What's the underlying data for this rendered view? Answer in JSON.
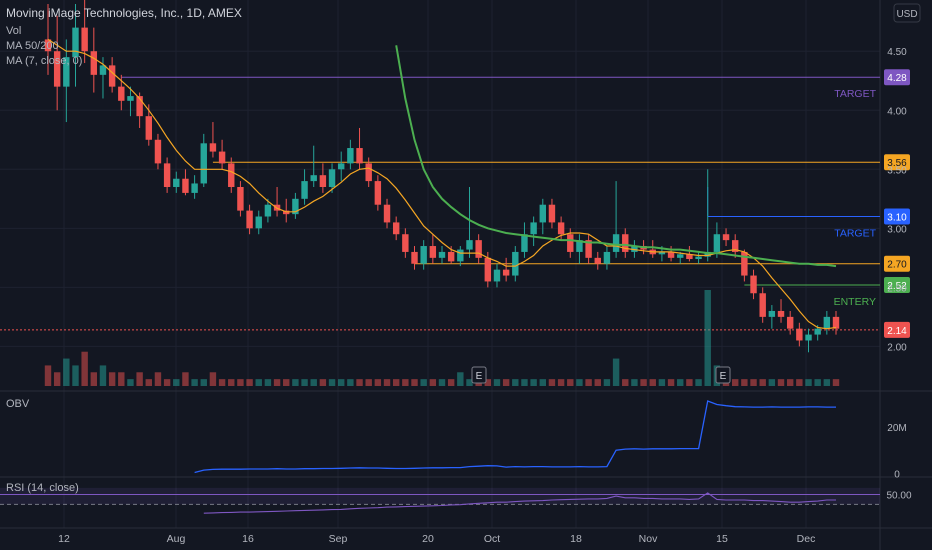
{
  "chart_data": {
    "type": "candlestick",
    "header": {
      "symbol_line": "Moving iMage Technologies, Inc., 1D, AMEX",
      "indicators": [
        "Vol",
        "MA 50/200",
        "MA (7, close, 0)"
      ]
    },
    "currency": "USD",
    "y_ticks": [
      {
        "value": 4.5,
        "label": "4.50"
      },
      {
        "value": 4.0,
        "label": "4.00"
      },
      {
        "value": 3.5,
        "label": "3.50"
      },
      {
        "value": 3.0,
        "label": "3.00"
      },
      {
        "value": 2.5,
        "label": "2.50"
      },
      {
        "value": 2.0,
        "label": "2.00"
      }
    ],
    "ylim": [
      1.8,
      4.9
    ],
    "x_ticks": [
      "12",
      "Aug",
      "16",
      "Sep",
      "20",
      "Oct",
      "18",
      "Nov",
      "15",
      "Dec"
    ],
    "levels": [
      {
        "value": 4.28,
        "label": "4.28",
        "name": "TARGET",
        "color": "#7e57c2"
      },
      {
        "value": 3.56,
        "label": "3.56",
        "name": "",
        "color": "#f5a623"
      },
      {
        "value": 3.1,
        "label": "3.10",
        "name": "TARGET",
        "color": "#2962ff"
      },
      {
        "value": 2.7,
        "label": "2.70",
        "name": "",
        "color": "#f5a623"
      },
      {
        "value": 2.52,
        "label": "2.52",
        "name": "ENTERY",
        "color": "#4caf50"
      },
      {
        "value": 2.14,
        "label": "2.14",
        "name": "",
        "color": "#ef5350"
      }
    ],
    "candles": [
      [
        4.6,
        4.9,
        4.3,
        4.5
      ],
      [
        4.5,
        4.8,
        4.0,
        4.2
      ],
      [
        4.2,
        4.6,
        3.9,
        4.45
      ],
      [
        4.45,
        4.9,
        4.2,
        4.7
      ],
      [
        4.7,
        4.95,
        4.4,
        4.5
      ],
      [
        4.5,
        4.7,
        4.15,
        4.3
      ],
      [
        4.3,
        4.45,
        4.1,
        4.38
      ],
      [
        4.38,
        4.45,
        4.15,
        4.2
      ],
      [
        4.2,
        4.3,
        4.0,
        4.08
      ],
      [
        4.08,
        4.2,
        3.95,
        4.12
      ],
      [
        4.12,
        4.15,
        3.85,
        3.95
      ],
      [
        3.95,
        4.05,
        3.7,
        3.75
      ],
      [
        3.75,
        3.8,
        3.5,
        3.55
      ],
      [
        3.55,
        3.6,
        3.3,
        3.35
      ],
      [
        3.35,
        3.48,
        3.3,
        3.42
      ],
      [
        3.42,
        3.5,
        3.28,
        3.3
      ],
      [
        3.3,
        3.45,
        3.25,
        3.38
      ],
      [
        3.38,
        3.8,
        3.35,
        3.72
      ],
      [
        3.72,
        3.9,
        3.6,
        3.65
      ],
      [
        3.65,
        3.75,
        3.5,
        3.55
      ],
      [
        3.55,
        3.6,
        3.3,
        3.35
      ],
      [
        3.35,
        3.4,
        3.1,
        3.15
      ],
      [
        3.15,
        3.2,
        2.95,
        3.0
      ],
      [
        3.0,
        3.15,
        2.95,
        3.1
      ],
      [
        3.1,
        3.25,
        3.05,
        3.2
      ],
      [
        3.2,
        3.35,
        3.1,
        3.15
      ],
      [
        3.15,
        3.25,
        3.05,
        3.12
      ],
      [
        3.12,
        3.3,
        3.08,
        3.25
      ],
      [
        3.25,
        3.5,
        3.2,
        3.4
      ],
      [
        3.4,
        3.7,
        3.35,
        3.45
      ],
      [
        3.45,
        3.55,
        3.3,
        3.35
      ],
      [
        3.35,
        3.55,
        3.3,
        3.5
      ],
      [
        3.5,
        3.65,
        3.4,
        3.55
      ],
      [
        3.55,
        3.75,
        3.5,
        3.68
      ],
      [
        3.68,
        3.85,
        3.5,
        3.55
      ],
      [
        3.55,
        3.6,
        3.35,
        3.4
      ],
      [
        3.4,
        3.45,
        3.15,
        3.2
      ],
      [
        3.2,
        3.25,
        3.0,
        3.05
      ],
      [
        3.05,
        3.1,
        2.9,
        2.95
      ],
      [
        2.95,
        3.0,
        2.75,
        2.8
      ],
      [
        2.8,
        2.85,
        2.65,
        2.7
      ],
      [
        2.7,
        2.9,
        2.65,
        2.85
      ],
      [
        2.85,
        2.95,
        2.7,
        2.75
      ],
      [
        2.75,
        2.85,
        2.7,
        2.8
      ],
      [
        2.8,
        2.85,
        2.7,
        2.72
      ],
      [
        2.72,
        2.85,
        2.68,
        2.82
      ],
      [
        2.82,
        3.35,
        2.75,
        2.9
      ],
      [
        2.9,
        2.95,
        2.7,
        2.75
      ],
      [
        2.75,
        2.8,
        2.5,
        2.55
      ],
      [
        2.55,
        2.7,
        2.5,
        2.65
      ],
      [
        2.65,
        2.75,
        2.55,
        2.6
      ],
      [
        2.6,
        2.85,
        2.55,
        2.8
      ],
      [
        2.8,
        3.05,
        2.75,
        2.95
      ],
      [
        2.95,
        3.1,
        2.85,
        3.05
      ],
      [
        3.05,
        3.25,
        2.95,
        3.2
      ],
      [
        3.2,
        3.25,
        3.0,
        3.05
      ],
      [
        3.05,
        3.1,
        2.9,
        2.95
      ],
      [
        2.95,
        3.0,
        2.75,
        2.8
      ],
      [
        2.8,
        2.95,
        2.7,
        2.9
      ],
      [
        2.9,
        2.95,
        2.7,
        2.75
      ],
      [
        2.75,
        2.8,
        2.65,
        2.7
      ],
      [
        2.7,
        2.85,
        2.65,
        2.8
      ],
      [
        2.8,
        3.4,
        2.75,
        2.95
      ],
      [
        2.95,
        3.0,
        2.75,
        2.8
      ],
      [
        2.8,
        2.9,
        2.75,
        2.85
      ],
      [
        2.85,
        2.9,
        2.78,
        2.82
      ],
      [
        2.82,
        2.9,
        2.75,
        2.78
      ],
      [
        2.78,
        2.85,
        2.72,
        2.8
      ],
      [
        2.8,
        2.85,
        2.72,
        2.75
      ],
      [
        2.75,
        2.8,
        2.7,
        2.78
      ],
      [
        2.78,
        2.85,
        2.72,
        2.74
      ],
      [
        2.74,
        2.8,
        2.7,
        2.76
      ],
      [
        2.76,
        3.5,
        2.72,
        2.8
      ],
      [
        2.8,
        3.05,
        2.75,
        2.95
      ],
      [
        2.95,
        3.0,
        2.85,
        2.9
      ],
      [
        2.9,
        2.95,
        2.75,
        2.8
      ],
      [
        2.8,
        2.82,
        2.55,
        2.6
      ],
      [
        2.6,
        2.65,
        2.4,
        2.45
      ],
      [
        2.45,
        2.5,
        2.2,
        2.25
      ],
      [
        2.25,
        2.35,
        2.15,
        2.3
      ],
      [
        2.3,
        2.4,
        2.2,
        2.25
      ],
      [
        2.25,
        2.3,
        2.1,
        2.15
      ],
      [
        2.15,
        2.2,
        2.0,
        2.05
      ],
      [
        2.05,
        2.15,
        1.95,
        2.1
      ],
      [
        2.1,
        2.18,
        2.05,
        2.15
      ],
      [
        2.15,
        2.3,
        2.1,
        2.25
      ],
      [
        2.25,
        2.3,
        2.1,
        2.15
      ]
    ],
    "volumes": [
      3,
      2,
      4,
      3,
      5,
      2,
      3,
      2,
      2,
      1,
      2,
      1,
      2,
      1,
      1,
      2,
      1,
      1,
      2,
      1,
      1,
      1,
      1,
      1,
      1,
      1,
      1,
      1,
      1,
      1,
      1,
      1,
      1,
      1,
      1,
      1,
      1,
      1,
      1,
      1,
      1,
      1,
      1,
      1,
      1,
      2,
      1,
      1,
      1,
      1,
      1,
      1,
      1,
      1,
      1,
      1,
      1,
      1,
      1,
      1,
      1,
      1,
      4,
      1,
      1,
      1,
      1,
      1,
      1,
      1,
      1,
      1,
      14,
      3,
      1,
      1,
      1,
      1,
      1,
      1,
      1,
      1,
      1,
      1,
      1,
      1,
      1
    ],
    "ma7": [
      4.6,
      4.55,
      4.5,
      4.5,
      4.48,
      4.44,
      4.39,
      4.32,
      4.25,
      4.18,
      4.1,
      4.0,
      3.89,
      3.77,
      3.66,
      3.57,
      3.5,
      3.5,
      3.5,
      3.5,
      3.48,
      3.44,
      3.38,
      3.3,
      3.23,
      3.17,
      3.14,
      3.14,
      3.18,
      3.23,
      3.27,
      3.33,
      3.39,
      3.46,
      3.5,
      3.51,
      3.47,
      3.42,
      3.34,
      3.24,
      3.13,
      3.02,
      2.95,
      2.88,
      2.82,
      2.79,
      2.79,
      2.79,
      2.75,
      2.72,
      2.68,
      2.68,
      2.72,
      2.77,
      2.85,
      2.9,
      2.94,
      2.96,
      2.96,
      2.95,
      2.9,
      2.85,
      2.85,
      2.83,
      2.82,
      2.81,
      2.8,
      2.8,
      2.8,
      2.79,
      2.78,
      2.77,
      2.77,
      2.79,
      2.81,
      2.82,
      2.8,
      2.75,
      2.68,
      2.58,
      2.49,
      2.4,
      2.3,
      2.21,
      2.16,
      2.15,
      2.16
    ],
    "ma50": [
      null,
      null,
      null,
      null,
      null,
      null,
      null,
      null,
      null,
      null,
      null,
      null,
      null,
      null,
      null,
      null,
      null,
      null,
      null,
      null,
      null,
      null,
      null,
      null,
      null,
      null,
      null,
      null,
      null,
      null,
      null,
      null,
      null,
      null,
      null,
      null,
      null,
      null,
      4.55,
      4.1,
      3.75,
      3.5,
      3.35,
      3.25,
      3.18,
      3.12,
      3.07,
      3.03,
      3.0,
      2.98,
      2.96,
      2.95,
      2.94,
      2.93,
      2.92,
      2.91,
      2.9,
      2.9,
      2.89,
      2.88,
      2.88,
      2.87,
      2.86,
      2.86,
      2.85,
      2.84,
      2.84,
      2.83,
      2.82,
      2.82,
      2.81,
      2.8,
      2.79,
      2.79,
      2.78,
      2.77,
      2.76,
      2.75,
      2.74,
      2.73,
      2.72,
      2.71,
      2.7,
      2.7,
      2.69,
      2.69,
      2.68
    ],
    "obv_panel": {
      "label": "OBV",
      "ticks": [
        {
          "value": 20,
          "label": "20M"
        },
        {
          "value": 0,
          "label": "0"
        }
      ],
      "ylim": [
        -1,
        34
      ],
      "values": [
        null,
        null,
        null,
        null,
        null,
        null,
        null,
        null,
        null,
        null,
        null,
        null,
        null,
        null,
        null,
        null,
        0.5,
        1.5,
        1.8,
        1.9,
        1.9,
        1.9,
        2.0,
        2.0,
        2.0,
        2.1,
        2.0,
        2.0,
        2.1,
        2.1,
        2.2,
        2.2,
        2.3,
        2.4,
        2.5,
        2.4,
        2.4,
        2.3,
        2.2,
        2.2,
        2.3,
        2.4,
        2.5,
        2.5,
        2.6,
        2.6,
        3.0,
        3.2,
        3.4,
        3.3,
        2.8,
        3.0,
        2.9,
        3.0,
        3.0,
        2.9,
        2.9,
        2.9,
        3.0,
        2.9,
        2.9,
        3.0,
        10.0,
        10.5,
        10.6,
        10.5,
        10.6,
        10.6,
        10.6,
        10.7,
        10.7,
        10.7,
        31.0,
        29.5,
        29.0,
        28.6,
        28.5,
        28.4,
        28.4,
        28.5,
        28.4,
        28.4,
        28.4,
        28.5,
        28.5,
        28.4,
        28.4
      ]
    },
    "rsi_panel": {
      "label": "RSI (14, close)",
      "ticks": [
        {
          "value": 50,
          "label": "50.00"
        }
      ],
      "ylim": [
        0,
        80
      ],
      "values": [
        null,
        null,
        null,
        null,
        null,
        null,
        null,
        null,
        null,
        null,
        null,
        null,
        null,
        null,
        null,
        null,
        null,
        16,
        16.5,
        17,
        17.5,
        18,
        18,
        18.5,
        19,
        19.5,
        20,
        20.5,
        21,
        21.5,
        22,
        22.5,
        23,
        24,
        25,
        25.5,
        26,
        27,
        27.5,
        28,
        28.5,
        29,
        29.5,
        30,
        31,
        31.5,
        33,
        34,
        35,
        36,
        36,
        37,
        38,
        38.5,
        39,
        40,
        40.5,
        41,
        41.5,
        42,
        42,
        43,
        47,
        44,
        44,
        43,
        43,
        42,
        42,
        42,
        41,
        42,
        53,
        41,
        40,
        40,
        40,
        39,
        39,
        38,
        37,
        36,
        36,
        37,
        38,
        40,
        40
      ],
      "top_band": 62,
      "bottom_band": 32
    }
  }
}
